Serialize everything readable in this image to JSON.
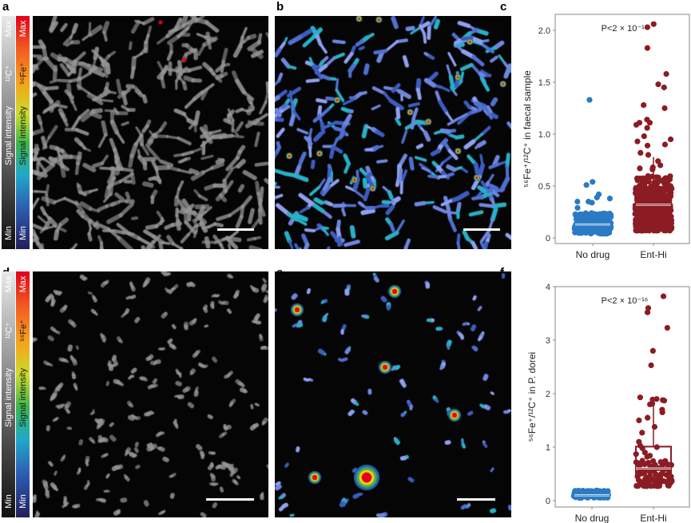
{
  "panels": {
    "a": "a",
    "b": "b",
    "c": "c",
    "d": "d",
    "e": "e",
    "f": "f"
  },
  "colorbars": {
    "c12": {
      "max": "Max",
      "label": "¹²C⁺",
      "title": "Signal intensity",
      "min": "Min"
    },
    "fe56": {
      "max": "Max",
      "label": "⁵⁶Fe⁺",
      "title": "Signal intensity",
      "min": "Min"
    }
  },
  "colors": {
    "no_drug": "#2a7bc4",
    "ent_hi": "#8b1c24"
  },
  "chart_data": [
    {
      "panel": "c",
      "type": "box-scatter",
      "ylabel": "⁵⁶Fe⁺/¹²C⁺ in faecal sample",
      "categories": [
        "No drug",
        "Ent-Hi"
      ],
      "yticks": [
        "0",
        "0.5",
        "1.0",
        "1.5",
        "2.0"
      ],
      "ylim": [
        0,
        2.1
      ],
      "annotation": "P<2 × 10⁻¹⁶",
      "series": [
        {
          "category": "No drug",
          "box": {
            "min": 0.04,
            "q1": 0.11,
            "median": 0.13,
            "q3": 0.15,
            "whisker_high": 0.22
          },
          "bulk_range": [
            0.04,
            0.24
          ],
          "outliers": [
            1.33,
            0.54,
            0.51,
            0.42,
            0.39,
            0.38,
            0.35,
            0.35,
            0.34,
            0.29
          ]
        },
        {
          "category": "Ent-Hi",
          "box": {
            "min": 0.07,
            "q1": 0.19,
            "median": 0.32,
            "q3": 0.45,
            "whisker_high": 0.78
          },
          "bulk_range": [
            0.07,
            0.6
          ],
          "outliers": [
            2.06,
            2.03,
            1.83,
            1.58,
            1.48,
            1.45,
            1.28,
            1.25,
            1.14,
            1.11,
            1.11,
            1.09,
            1.06,
            0.98,
            0.95,
            0.93,
            0.9,
            0.89,
            0.82,
            0.8,
            0.74,
            0.7,
            0.68,
            0.67,
            0.66
          ]
        }
      ]
    },
    {
      "panel": "f",
      "type": "box-scatter",
      "ylabel": "⁵⁶Fe⁺/¹²C⁺ in P. dorei",
      "categories": [
        "No drug",
        "Ent-Hi"
      ],
      "yticks": [
        "0",
        "1",
        "2",
        "3",
        "4"
      ],
      "ylim": [
        0,
        4
      ],
      "annotation": "P<2 × 10⁻¹⁶",
      "series": [
        {
          "category": "No drug",
          "box": {
            "min": 0.05,
            "q1": 0.08,
            "median": 0.1,
            "q3": 0.12,
            "whisker_high": 0.19
          },
          "bulk_range": [
            0.05,
            0.19
          ],
          "outliers": []
        },
        {
          "category": "Ent-Hi",
          "box": {
            "min": 0.27,
            "q1": 0.47,
            "median": 0.6,
            "q3": 1.01,
            "whisker_high": 1.8
          },
          "bulk_range": [
            0.27,
            0.75
          ],
          "outliers": [
            3.82,
            3.6,
            3.52,
            3.23,
            2.8,
            2.53,
            1.93,
            1.9,
            1.89,
            1.88,
            1.87,
            1.81,
            1.8,
            1.7,
            1.65,
            1.55,
            1.5,
            1.38,
            1.27,
            1.1,
            1.03,
            1.0,
            0.98,
            0.9,
            0.87,
            0.84,
            0.82
          ]
        }
      ]
    }
  ]
}
